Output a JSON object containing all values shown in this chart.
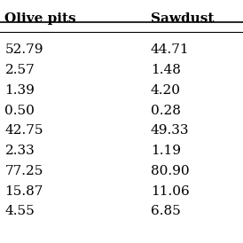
{
  "col1_header": "Olive pits",
  "col2_header": "Sawdust",
  "col1_values": [
    "52.79",
    "2.57",
    "1.39",
    "0.50",
    "42.75",
    "2.33",
    "77.25",
    "15.87",
    "4.55"
  ],
  "col2_values": [
    "44.71",
    "1.48",
    "4.20",
    "0.28",
    "49.33",
    "1.19",
    "80.90",
    "11.06",
    "6.85"
  ],
  "background_color": "#ffffff",
  "header_fontsize": 11,
  "data_fontsize": 11,
  "font_family": "DejaVu Serif"
}
